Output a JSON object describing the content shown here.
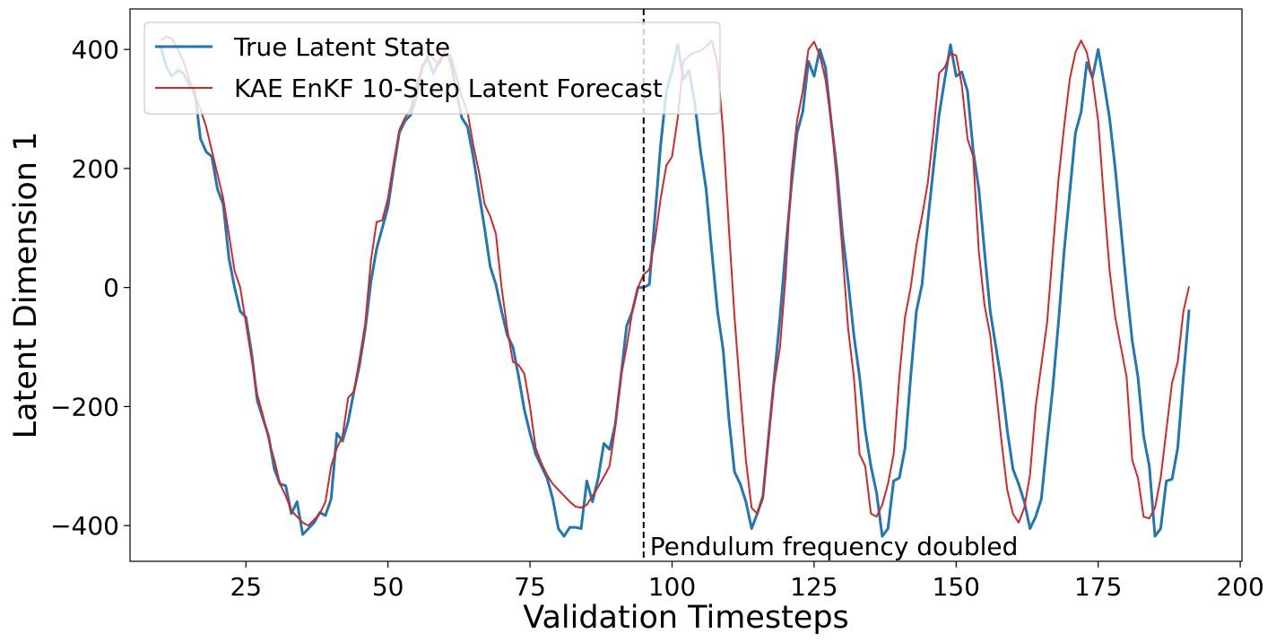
{
  "chart_data": {
    "type": "line",
    "xlabel": "Validation Timesteps",
    "ylabel": "Latent Dimension 1",
    "annotation": "Pendulum frequency doubled",
    "vline": 95,
    "legend": "upper left",
    "xlim": [
      4.6,
      200.3
    ],
    "ylim": [
      -460,
      468
    ],
    "xticks": [
      25,
      50,
      75,
      100,
      125,
      150,
      175,
      200
    ],
    "yticks": [
      {
        "value": -400,
        "label": "−400"
      },
      {
        "value": -200,
        "label": "−200"
      },
      0,
      200,
      400
    ],
    "x": [
      10,
      11,
      12,
      13,
      14,
      15,
      16,
      17,
      18,
      19,
      20,
      21,
      22,
      23,
      24,
      25,
      26,
      27,
      28,
      29,
      30,
      31,
      32,
      33,
      34,
      35,
      36,
      37,
      38,
      39,
      40,
      41,
      42,
      43,
      44,
      45,
      46,
      47,
      48,
      49,
      50,
      51,
      52,
      53,
      54,
      55,
      56,
      57,
      58,
      59,
      60,
      61,
      62,
      63,
      64,
      65,
      66,
      67,
      68,
      69,
      70,
      71,
      72,
      73,
      74,
      75,
      76,
      77,
      78,
      79,
      80,
      81,
      82,
      83,
      84,
      85,
      86,
      87,
      88,
      89,
      90,
      91,
      92,
      93,
      94,
      95,
      96,
      97,
      98,
      99,
      100,
      101,
      102,
      103,
      104,
      105,
      106,
      107,
      108,
      109,
      110,
      111,
      112,
      113,
      114,
      115,
      116,
      117,
      118,
      119,
      120,
      121,
      122,
      123,
      124,
      125,
      126,
      127,
      128,
      129,
      130,
      131,
      132,
      133,
      134,
      135,
      136,
      137,
      138,
      139,
      140,
      141,
      142,
      143,
      144,
      145,
      146,
      147,
      148,
      149,
      150,
      151,
      152,
      153,
      154,
      155,
      156,
      157,
      158,
      159,
      160,
      161,
      162,
      163,
      164,
      165,
      166,
      167,
      168,
      169,
      170,
      171,
      172,
      173,
      174,
      175,
      176,
      177,
      178,
      179,
      180,
      181,
      182,
      183,
      184,
      185,
      186,
      187,
      188,
      189,
      190,
      191
    ],
    "series": [
      {
        "name": "True Latent State",
        "color": "#1f77b4",
        "width": 3,
        "values": [
          405,
          370,
          355,
          365,
          360,
          340,
          330,
          250,
          228,
          220,
          165,
          140,
          50,
          0,
          -40,
          -50,
          -110,
          -190,
          -220,
          -250,
          -305,
          -330,
          -333,
          -380,
          -360,
          -415,
          -405,
          -395,
          -378,
          -383,
          -355,
          -245,
          -258,
          -225,
          -175,
          -130,
          -70,
          10,
          65,
          100,
          135,
          200,
          260,
          280,
          290,
          320,
          370,
          385,
          360,
          380,
          395,
          380,
          330,
          285,
          270,
          220,
          160,
          100,
          35,
          5,
          -40,
          -80,
          -100,
          -150,
          -205,
          -245,
          -280,
          -300,
          -320,
          -355,
          -405,
          -418,
          -403,
          -403,
          -405,
          -325,
          -360,
          -320,
          -262,
          -272,
          -230,
          -150,
          -65,
          -40,
          0,
          0,
          5,
          120,
          240,
          330,
          365,
          408,
          350,
          365,
          310,
          230,
          165,
          60,
          -40,
          -105,
          -220,
          -310,
          -330,
          -360,
          -405,
          -380,
          -350,
          -250,
          -150,
          -50,
          65,
          170,
          260,
          295,
          380,
          355,
          400,
          370,
          280,
          200,
          90,
          10,
          -80,
          -150,
          -240,
          -300,
          -345,
          -418,
          -405,
          -325,
          -320,
          -270,
          -150,
          -40,
          5,
          110,
          200,
          290,
          350,
          408,
          355,
          362,
          330,
          230,
          165,
          60,
          -40,
          -100,
          -160,
          -240,
          -305,
          -330,
          -360,
          -405,
          -385,
          -355,
          -260,
          -170,
          -60,
          60,
          160,
          260,
          295,
          378,
          353,
          400,
          345,
          285,
          200,
          100,
          0,
          -90,
          -150,
          -250,
          -300,
          -418,
          -405,
          -325,
          -322,
          -270,
          -150,
          -37
        ]
      },
      {
        "name": "KAE EnKF 10-Step Latent Forecast",
        "color": "#d62728",
        "width": 2,
        "values": [
          415,
          422,
          418,
          400,
          380,
          350,
          320,
          300,
          270,
          230,
          190,
          150,
          90,
          28,
          0,
          -60,
          -120,
          -180,
          -215,
          -255,
          -290,
          -330,
          -350,
          -375,
          -385,
          -395,
          -400,
          -390,
          -380,
          -360,
          -300,
          -270,
          -250,
          -185,
          -175,
          -120,
          -60,
          45,
          110,
          113,
          150,
          210,
          265,
          285,
          300,
          340,
          370,
          390,
          385,
          375,
          395,
          390,
          355,
          320,
          295,
          240,
          195,
          140,
          120,
          90,
          0,
          -70,
          -125,
          -130,
          -145,
          -200,
          -270,
          -295,
          -315,
          -330,
          -340,
          -350,
          -360,
          -368,
          -370,
          -365,
          -350,
          -335,
          -318,
          -300,
          -235,
          -150,
          -100,
          -40,
          0,
          22,
          30,
          80,
          150,
          205,
          220,
          285,
          380,
          390,
          395,
          398,
          405,
          415,
          375,
          260,
          100,
          -50,
          -175,
          -290,
          -370,
          -380,
          -355,
          -250,
          -160,
          -100,
          20,
          190,
          280,
          330,
          400,
          413,
          390,
          350,
          280,
          180,
          60,
          -70,
          -150,
          -280,
          -300,
          -380,
          -385,
          -365,
          -330,
          -280,
          -150,
          -50,
          0,
          70,
          120,
          175,
          260,
          360,
          370,
          393,
          390,
          340,
          250,
          220,
          60,
          -30,
          -80,
          -170,
          -260,
          -340,
          -380,
          -395,
          -370,
          -315,
          -200,
          -130,
          -60,
          60,
          180,
          270,
          350,
          395,
          415,
          395,
          350,
          280,
          150,
          30,
          -50,
          -100,
          -150,
          -290,
          -320,
          -385,
          -388,
          -370,
          -320,
          -240,
          -160,
          -125,
          -40,
          2
        ]
      }
    ]
  }
}
